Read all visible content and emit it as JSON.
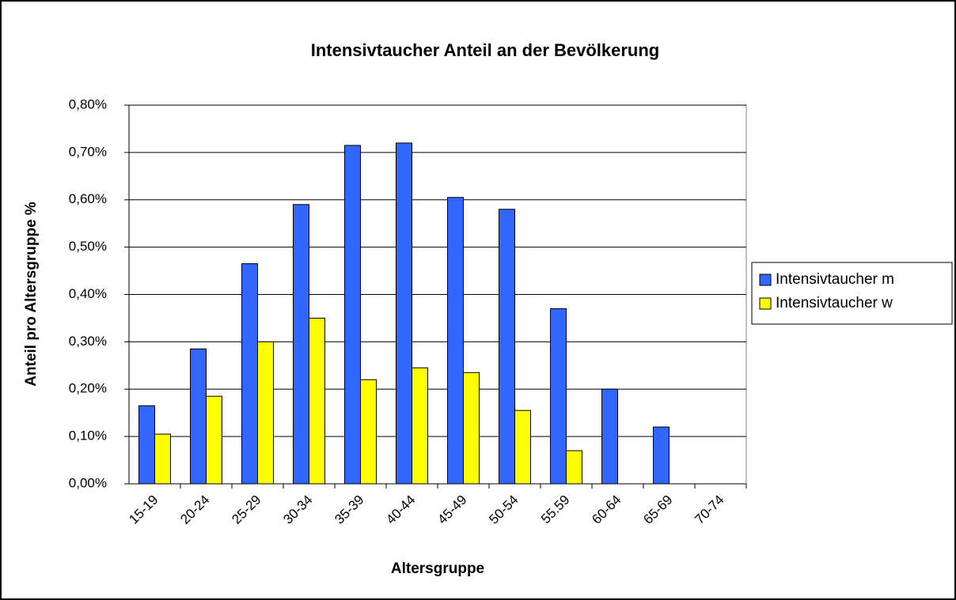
{
  "chart_data": {
    "type": "bar",
    "title": "Intensivtaucher Anteil an der Bevölkerung",
    "x_label": "Altersgruppe",
    "y_label": "Anteil pro Altersgruppe %",
    "categories": [
      "15-19",
      "20-24",
      "25-29",
      "30-34",
      "35-39",
      "40-44",
      "45-49",
      "50-54",
      "55.59",
      "60-64",
      "65-69",
      "70-74"
    ],
    "series": [
      {
        "name": "Intensivtaucher m",
        "color": "#3366ff",
        "values": [
          0.165,
          0.285,
          0.465,
          0.59,
          0.715,
          0.72,
          0.605,
          0.58,
          0.37,
          0.2,
          0.12,
          0
        ]
      },
      {
        "name": "Intensivtaucher w",
        "color": "#ffff00",
        "values": [
          0.105,
          0.185,
          0.3,
          0.35,
          0.22,
          0.245,
          0.235,
          0.155,
          0.07,
          0,
          0,
          0
        ]
      }
    ],
    "ylim": [
      0,
      0.8
    ],
    "yticks": [
      {
        "value": 0,
        "label": "0,00%"
      },
      {
        "value": 0.1,
        "label": "0,10%"
      },
      {
        "value": 0.2,
        "label": "0,20%"
      },
      {
        "value": 0.3,
        "label": "0,30%"
      },
      {
        "value": 0.4,
        "label": "0,40%"
      },
      {
        "value": 0.5,
        "label": "0,50%"
      },
      {
        "value": 0.6,
        "label": "0,60%"
      },
      {
        "value": 0.7,
        "label": "0,70%"
      },
      {
        "value": 0.8,
        "label": "0,80%"
      }
    ],
    "grid": true,
    "legend": "right"
  }
}
